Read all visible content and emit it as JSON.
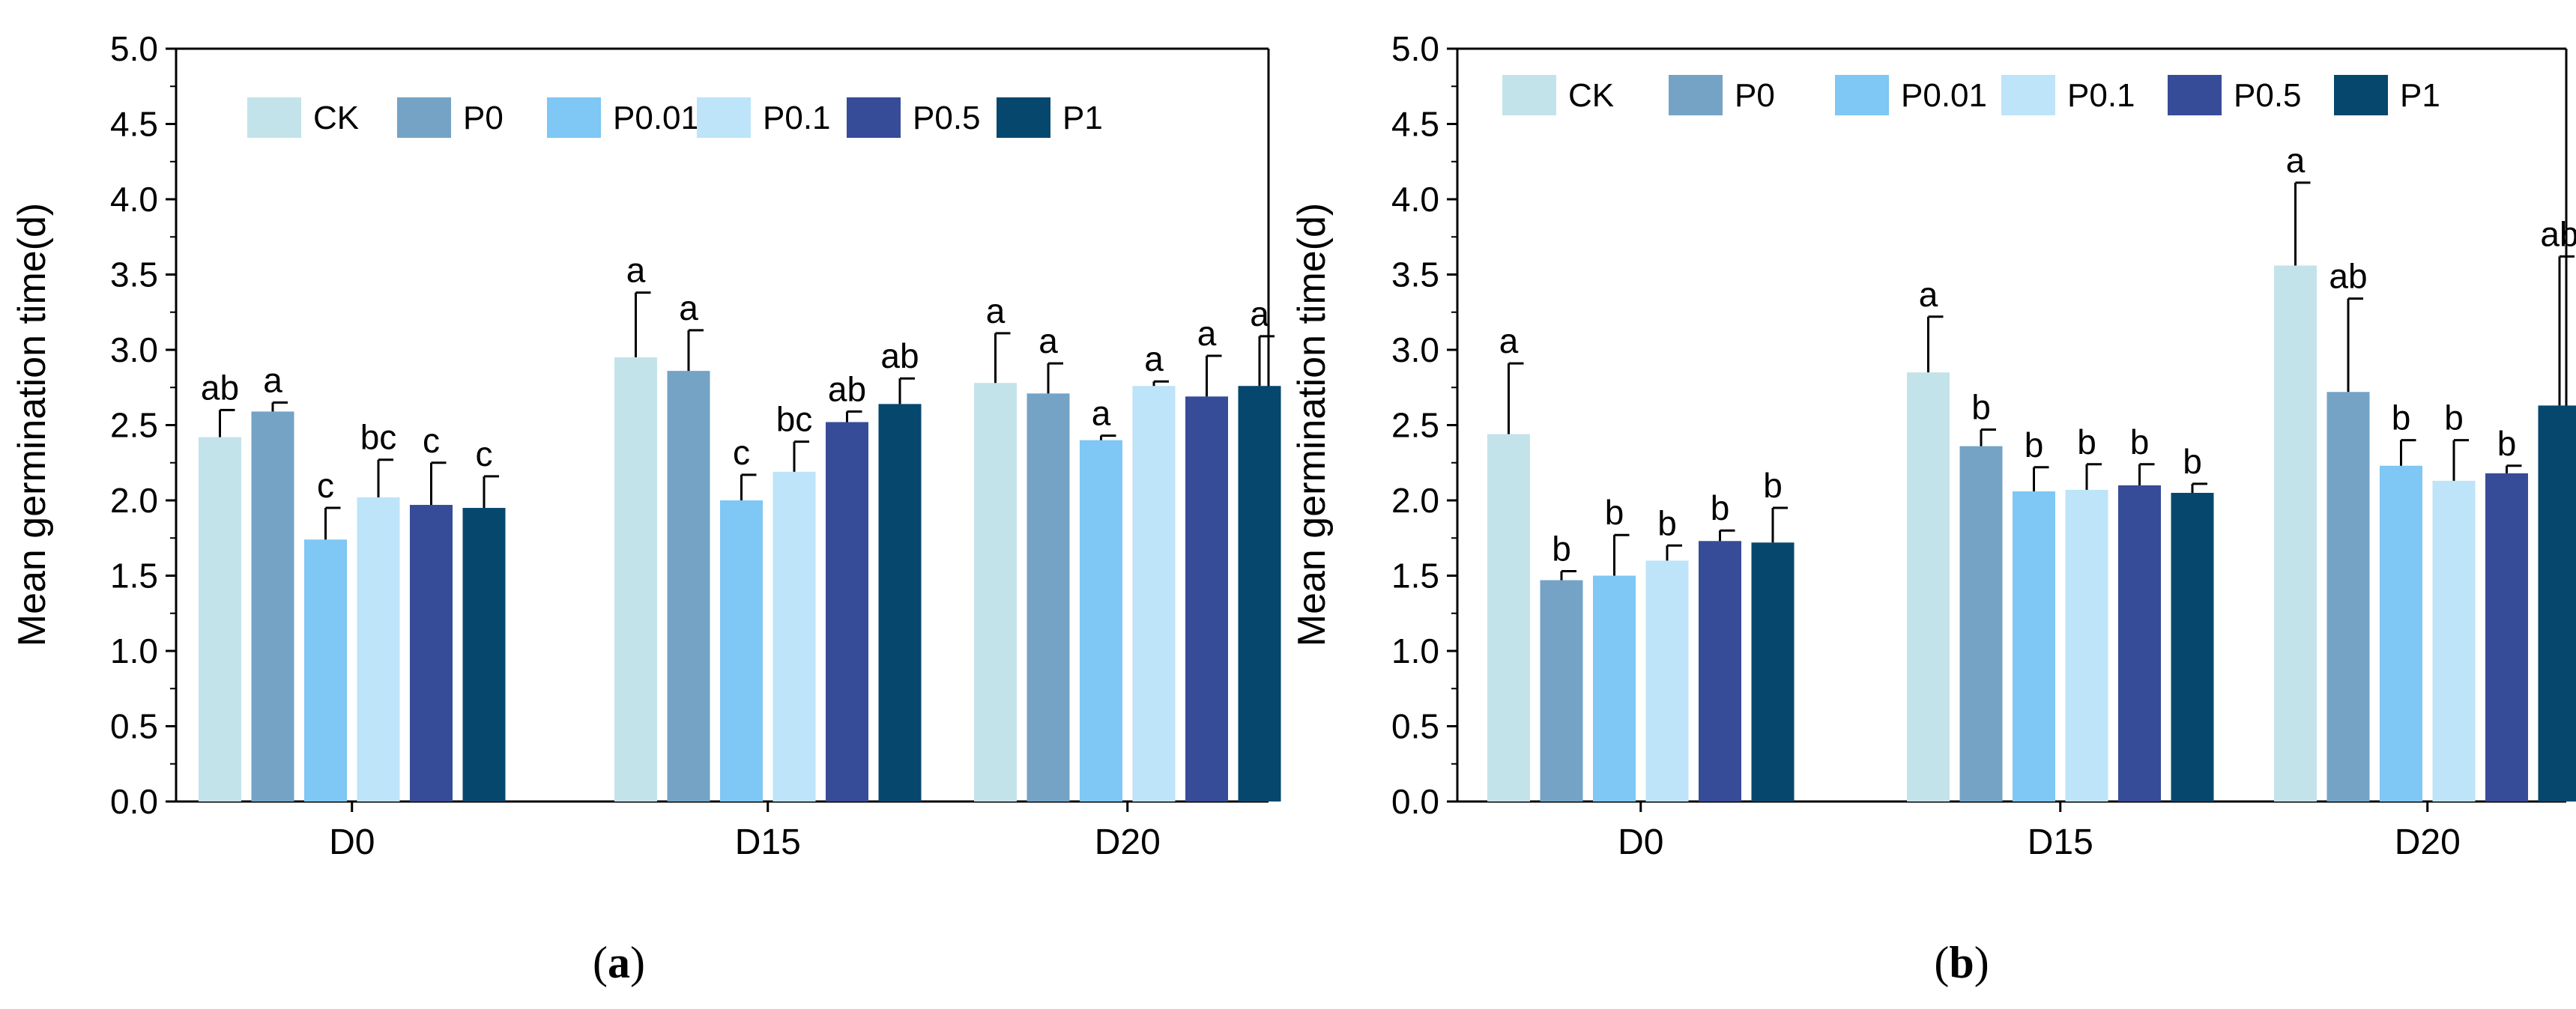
{
  "figure": {
    "panels": [
      {
        "label_open": "(",
        "label_letter": "a",
        "label_close": ")"
      },
      {
        "label_open": "(",
        "label_letter": "b",
        "label_close": ")"
      }
    ]
  },
  "colors": {
    "CK": "#c3e3ea",
    "P0": "#74a3c6",
    "P0.01": "#7fc7f4",
    "P0.1": "#bde4f9",
    "P0.5": "#374c98",
    "P1": "#06476e"
  },
  "chart_data": [
    {
      "type": "bar",
      "title": "",
      "xlabel": "",
      "ylabel": "Mean germination time(d)",
      "ylim": [
        0,
        5.0
      ],
      "yticks": [
        "0.0",
        "0.5",
        "1.0",
        "1.5",
        "2.0",
        "2.5",
        "3.0",
        "3.5",
        "4.0",
        "4.5",
        "5.0"
      ],
      "categories": [
        "D0",
        "D15",
        "D20"
      ],
      "legend": "top",
      "error_bars": true,
      "series": [
        {
          "name": "CK",
          "values": [
            2.42,
            2.95,
            2.78
          ],
          "errors": [
            0.18,
            0.43,
            0.33
          ],
          "letters": [
            "ab",
            "a",
            "a"
          ]
        },
        {
          "name": "P0",
          "values": [
            2.59,
            2.86,
            2.71
          ],
          "errors": [
            0.06,
            0.27,
            0.2
          ],
          "letters": [
            "a",
            "a",
            "a"
          ]
        },
        {
          "name": "P0.01",
          "values": [
            1.74,
            2.0,
            2.4
          ],
          "errors": [
            0.21,
            0.17,
            0.03
          ],
          "letters": [
            "c",
            "c",
            "a"
          ]
        },
        {
          "name": "P0.1",
          "values": [
            2.02,
            2.19,
            2.76
          ],
          "errors": [
            0.25,
            0.2,
            0.03
          ],
          "letters": [
            "bc",
            "bc",
            "a"
          ]
        },
        {
          "name": "P0.5",
          "values": [
            1.97,
            2.52,
            2.69
          ],
          "errors": [
            0.28,
            0.07,
            0.27
          ],
          "letters": [
            "c",
            "ab",
            "a"
          ]
        },
        {
          "name": "P1",
          "values": [
            1.95,
            2.64,
            2.76
          ],
          "errors": [
            0.21,
            0.17,
            0.33
          ],
          "letters": [
            "c",
            "ab",
            "a"
          ]
        }
      ]
    },
    {
      "type": "bar",
      "title": "",
      "xlabel": "",
      "ylabel": "Mean germination time(d)",
      "ylim": [
        0,
        5.0
      ],
      "yticks": [
        "0.0",
        "0.5",
        "1.0",
        "1.5",
        "2.0",
        "2.5",
        "3.0",
        "3.5",
        "4.0",
        "4.5",
        "5.0"
      ],
      "categories": [
        "D0",
        "D15",
        "D20"
      ],
      "legend": "top",
      "error_bars": true,
      "series": [
        {
          "name": "CK",
          "values": [
            2.44,
            2.85,
            3.56
          ],
          "errors": [
            0.47,
            0.37,
            0.55
          ],
          "letters": [
            "a",
            "a",
            "a"
          ]
        },
        {
          "name": "P0",
          "values": [
            1.47,
            2.36,
            2.72
          ],
          "errors": [
            0.06,
            0.11,
            0.62
          ],
          "letters": [
            "b",
            "b",
            "ab"
          ]
        },
        {
          "name": "P0.01",
          "values": [
            1.5,
            2.06,
            2.23
          ],
          "errors": [
            0.27,
            0.16,
            0.17
          ],
          "letters": [
            "b",
            "b",
            "b"
          ]
        },
        {
          "name": "P0.1",
          "values": [
            1.6,
            2.07,
            2.13
          ],
          "errors": [
            0.1,
            0.17,
            0.27
          ],
          "letters": [
            "b",
            "b",
            "b"
          ]
        },
        {
          "name": "P0.5",
          "values": [
            1.73,
            2.1,
            2.18
          ],
          "errors": [
            0.07,
            0.14,
            0.05
          ],
          "letters": [
            "b",
            "b",
            "b"
          ]
        },
        {
          "name": "P1",
          "values": [
            1.72,
            2.05,
            2.63
          ],
          "errors": [
            0.23,
            0.06,
            0.99
          ],
          "letters": [
            "b",
            "b",
            "ab"
          ]
        }
      ]
    }
  ]
}
